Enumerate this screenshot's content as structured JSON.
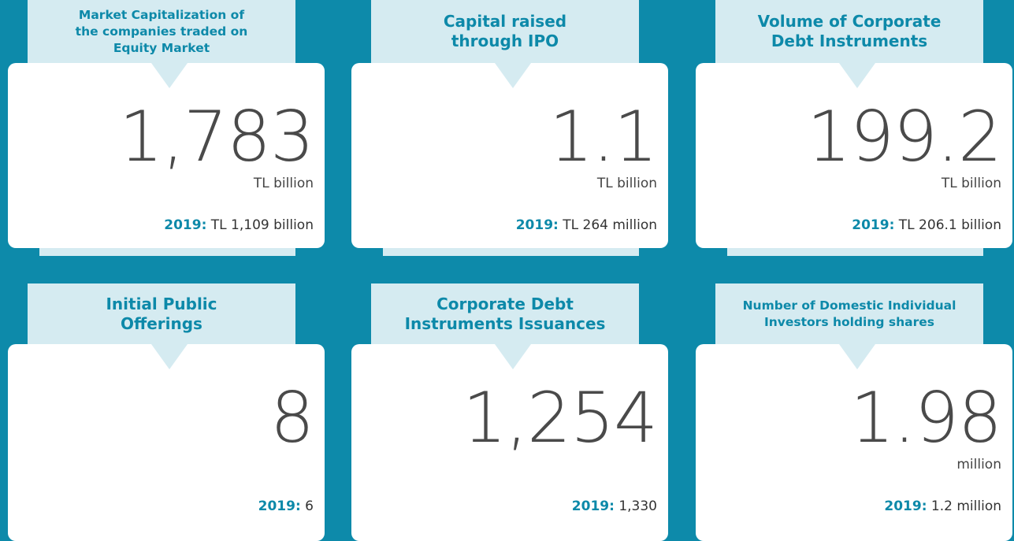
{
  "cards": [
    {
      "title_lines": [
        "Market Capitalization of",
        "the companies traded on",
        "Equity Market"
      ],
      "value": "1,783",
      "unit": "TL billion",
      "year_label": "2019:",
      "previous": "TL 1,109 billion"
    },
    {
      "title_lines": [
        "Capital raised",
        "through IPO"
      ],
      "value": "1.1",
      "unit": "TL billion",
      "year_label": "2019:",
      "previous": "TL 264 million"
    },
    {
      "title_lines": [
        "Volume of Corporate",
        "Debt Instruments"
      ],
      "value": "199.2",
      "unit": "TL billion",
      "year_label": "2019:",
      "previous": "TL 206.1 billion"
    },
    {
      "title_lines": [
        "Initial Public",
        "Offerings"
      ],
      "value": "8",
      "year_label": "2019:",
      "previous": "6"
    },
    {
      "title_lines": [
        "Corporate Debt",
        "Instruments Issuances"
      ],
      "value": "1,254",
      "year_label": "2019:",
      "previous": "1,330"
    },
    {
      "title_lines": [
        "Number of Domestic Individual",
        "Investors holding shares"
      ],
      "value": "1.98",
      "unit": "million",
      "year_label": "2019:",
      "previous": "1.2 million"
    }
  ]
}
